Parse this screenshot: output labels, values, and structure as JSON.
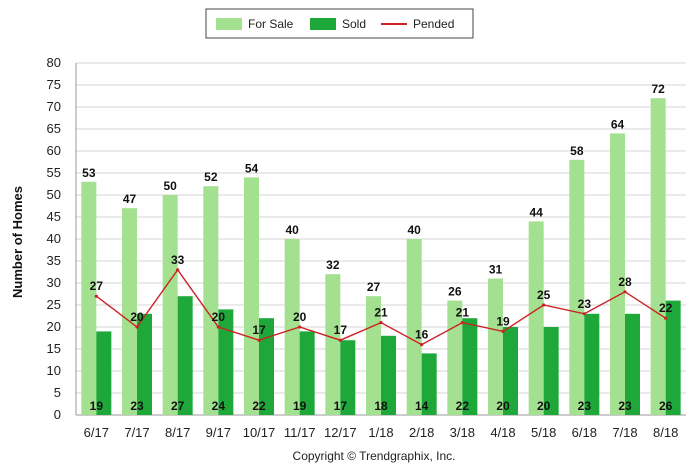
{
  "chart_data": {
    "type": "bar",
    "ylabel": "Number of Homes",
    "xlabel": "",
    "ylim": [
      0,
      80
    ],
    "ytick_step": 5,
    "grid": true,
    "legend_position": "top-center",
    "categories": [
      "6/17",
      "7/17",
      "8/17",
      "9/17",
      "10/17",
      "11/17",
      "12/17",
      "1/18",
      "2/18",
      "3/18",
      "4/18",
      "5/18",
      "6/18",
      "7/18",
      "8/18"
    ],
    "series": [
      {
        "name": "For Sale",
        "kind": "bar",
        "color": "#a3e08f",
        "values": [
          53,
          47,
          50,
          52,
          54,
          40,
          32,
          27,
          40,
          26,
          31,
          44,
          58,
          64,
          72
        ]
      },
      {
        "name": "Sold",
        "kind": "bar",
        "color": "#1fa83a",
        "values": [
          19,
          23,
          27,
          24,
          22,
          19,
          17,
          18,
          14,
          22,
          20,
          20,
          23,
          23,
          26
        ]
      },
      {
        "name": "Pended",
        "kind": "line",
        "color": "#cc2222",
        "values": [
          27,
          20,
          33,
          20,
          17,
          20,
          17,
          21,
          16,
          21,
          19,
          25,
          23,
          28,
          22
        ]
      }
    ]
  },
  "copyright": "Copyright © Trendgraphix, Inc."
}
